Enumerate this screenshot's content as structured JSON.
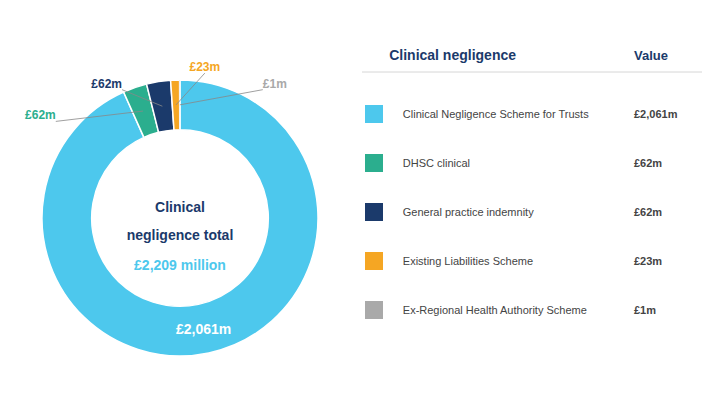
{
  "chart_data": {
    "type": "pie",
    "categories": [
      "Clinical Negligence Scheme for Trusts",
      "DHSC clinical",
      "General practice indemnity",
      "Existing Liabilities Scheme",
      "Ex-Regional Health Authority Scheme"
    ],
    "values": [
      2061,
      62,
      62,
      23,
      1
    ],
    "value_labels": [
      "£2,061m",
      "£62m",
      "£62m",
      "£23m",
      "£1m"
    ],
    "colors": [
      "#4DC8ED",
      "#2BAE8E",
      "#1B3A6B",
      "#F5A623",
      "#A9A9A9"
    ],
    "data_labels": true,
    "annotations": [
      "Clinical",
      "negligence total",
      "£2,209 million"
    ],
    "legend": "right",
    "legend_title": "Clinical negligence",
    "legend_value_header": "Value"
  }
}
